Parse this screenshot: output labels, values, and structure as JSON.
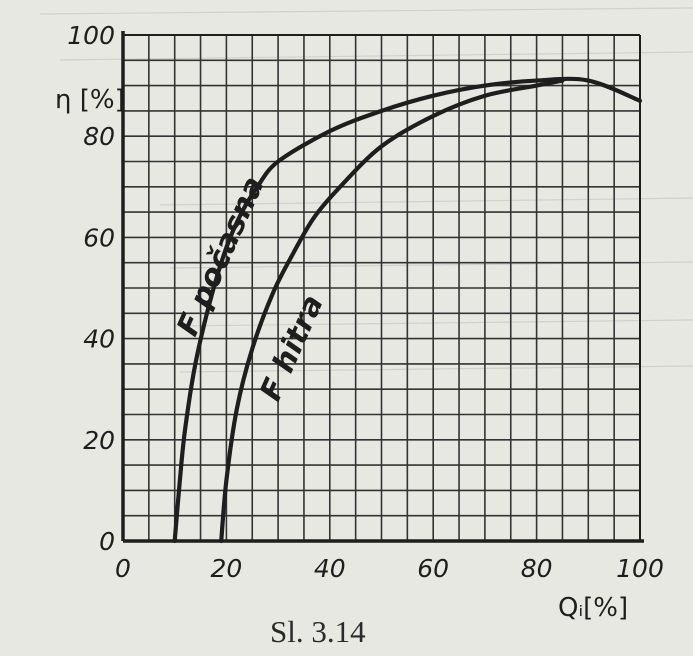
{
  "caption": "Sl. 3.14",
  "chart_data": {
    "type": "line",
    "title": "",
    "xlabel": "Qᵢ[%]",
    "ylabel": "η [%]",
    "xlim": [
      0,
      100
    ],
    "ylim": [
      0,
      100
    ],
    "x_ticks": [
      "0",
      "20",
      "40",
      "60",
      "80",
      "100"
    ],
    "y_ticks": [
      "0",
      "20",
      "40",
      "60",
      "80",
      "100"
    ],
    "grid": true,
    "series": [
      {
        "name": "F počasna",
        "x": [
          10,
          11,
          12,
          14,
          17,
          20,
          23,
          26,
          30,
          40,
          50,
          60,
          70,
          80,
          90,
          100
        ],
        "y": [
          0,
          12,
          22,
          35,
          48,
          58,
          65,
          70,
          75,
          81,
          85,
          88,
          90,
          91,
          91,
          87
        ]
      },
      {
        "name": "F hitra",
        "x": [
          19,
          20,
          22,
          25,
          29,
          33,
          37,
          42,
          50,
          60,
          70,
          80,
          85
        ],
        "y": [
          0,
          12,
          26,
          38,
          49,
          57,
          64,
          70,
          78,
          84,
          88,
          90,
          91
        ]
      }
    ],
    "colors": {
      "ink": "#1e1e1e",
      "grid": "#333333",
      "paper": "#e8e8e3"
    }
  }
}
